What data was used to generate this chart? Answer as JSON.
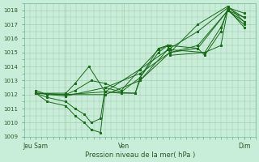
{
  "xlabel": "Pression niveau de la mer( hPa )",
  "background_color": "#c8edd8",
  "grid_color": "#a0c8a8",
  "line_color": "#1a6b1a",
  "ylim": [
    1009,
    1018.5
  ],
  "yticks": [
    1009,
    1010,
    1011,
    1012,
    1013,
    1014,
    1015,
    1016,
    1017,
    1018
  ],
  "xlim": [
    0,
    100
  ],
  "xtick_positions": [
    5,
    18,
    43,
    95
  ],
  "xtick_labels": [
    "Jeu Sam",
    "",
    "Ven",
    "Dim"
  ],
  "lines": [
    {
      "x": [
        5,
        18,
        35,
        50,
        63,
        75,
        88,
        95
      ],
      "y": [
        1012.1,
        1012.0,
        1012.0,
        1013.0,
        1015.0,
        1015.5,
        1018.0,
        1017.5
      ]
    },
    {
      "x": [
        5,
        18,
        35,
        50,
        63,
        75,
        88,
        95
      ],
      "y": [
        1012.1,
        1012.0,
        1012.2,
        1013.8,
        1015.3,
        1016.5,
        1018.2,
        1017.8
      ]
    },
    {
      "x": [
        5,
        18,
        35,
        50,
        63,
        75,
        88,
        95
      ],
      "y": [
        1012.1,
        1011.9,
        1012.5,
        1013.5,
        1015.0,
        1017.0,
        1018.3,
        1017.2
      ]
    },
    {
      "x": [
        5,
        18,
        22,
        28,
        35,
        48,
        50,
        62,
        63,
        75,
        88,
        95
      ],
      "y": [
        1012.1,
        1012.1,
        1012.8,
        1014.0,
        1012.2,
        1012.1,
        1013.0,
        1015.2,
        1015.5,
        1015.3,
        1018.0,
        1017.0
      ]
    },
    {
      "x": [
        5,
        10,
        18,
        22,
        26,
        29,
        33,
        35,
        42,
        48,
        50,
        58,
        62,
        63,
        75,
        78,
        85,
        88,
        95
      ],
      "y": [
        1012.1,
        1011.5,
        1011.2,
        1010.5,
        1010.0,
        1009.5,
        1009.3,
        1012.2,
        1012.1,
        1012.1,
        1013.2,
        1015.0,
        1015.5,
        1015.0,
        1015.3,
        1014.8,
        1016.5,
        1018.2,
        1017.5
      ]
    },
    {
      "x": [
        5,
        10,
        18,
        22,
        26,
        29,
        33,
        35,
        42,
        50,
        58,
        62,
        63,
        78,
        85,
        88,
        95
      ],
      "y": [
        1012.1,
        1011.8,
        1011.5,
        1011.0,
        1010.6,
        1010.0,
        1010.3,
        1012.5,
        1012.2,
        1013.2,
        1015.3,
        1015.5,
        1015.2,
        1015.0,
        1016.8,
        1018.0,
        1017.2
      ]
    },
    {
      "x": [
        5,
        10,
        18,
        22,
        29,
        35,
        42,
        50,
        58,
        62,
        63,
        78,
        85,
        88,
        95
      ],
      "y": [
        1012.3,
        1012.0,
        1012.0,
        1012.3,
        1013.0,
        1012.8,
        1012.3,
        1013.8,
        1015.2,
        1015.5,
        1014.8,
        1015.0,
        1015.5,
        1018.1,
        1016.8
      ]
    }
  ]
}
